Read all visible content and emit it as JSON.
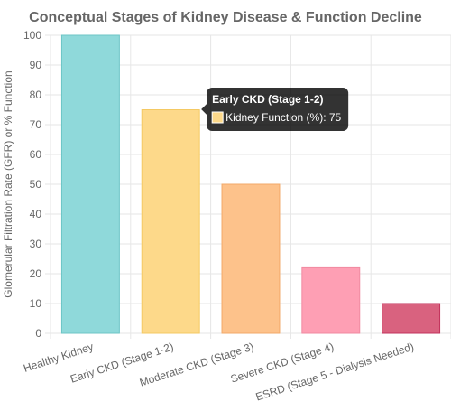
{
  "chart_data": {
    "type": "bar",
    "title": "Conceptual Stages of Kidney Disease & Function Decline",
    "ylabel": "Glomerular Filtration Rate (GFR) or % Function",
    "xlabel": "",
    "ylim": [
      0,
      100
    ],
    "y_ticks": [
      0,
      10,
      20,
      30,
      40,
      50,
      60,
      70,
      80,
      90,
      100
    ],
    "categories": [
      "Healthy Kidney",
      "Early CKD (Stage 1-2)",
      "Moderate CKD (Stage 3)",
      "Severe CKD (Stage 4)",
      "ESRD (Stage 5 - Dialysis Needed)"
    ],
    "series": [
      {
        "name": "Kidney Function (%)",
        "values": [
          100,
          75,
          50,
          22,
          10
        ],
        "colors": [
          "#8fd9da",
          "#fdd98a",
          "#fdc28b",
          "#fe9fb4",
          "#d9627f"
        ],
        "border_colors": [
          "#6cc5c6",
          "#f4c963",
          "#f2a869",
          "#f08aa1",
          "#c2335c"
        ]
      }
    ],
    "grid": true,
    "legend": "none",
    "tooltip": {
      "category_index": 1,
      "title": "Early CKD (Stage 1-2)",
      "label": "Kidney Function (%): 75"
    }
  }
}
